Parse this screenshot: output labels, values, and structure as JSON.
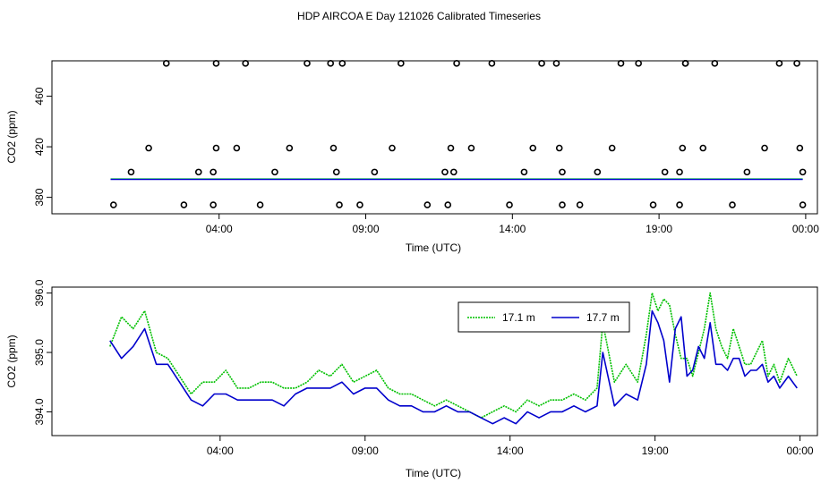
{
  "figure": {
    "title": "HDP AIRCOA E  Day 121026  Calibrated Timeseries"
  },
  "chart_data": [
    {
      "type": "scatter",
      "title": "",
      "xlabel": "Time (UTC)",
      "ylabel": "CO2 (ppm)",
      "x_unit": "hours UTC",
      "xlim": [
        -1.7,
        24.4
      ],
      "ylim": [
        367,
        488
      ],
      "x_ticks": [
        4,
        9,
        14,
        19,
        24
      ],
      "x_tick_labels": [
        "04:00",
        "09:00",
        "14:00",
        "19:00",
        "00:00"
      ],
      "y_ticks": [
        380,
        420,
        460
      ],
      "y_tick_labels": [
        "380",
        "420",
        "460"
      ],
      "grid": false,
      "points": {
        "x": [
          0.4,
          1.0,
          1.6,
          2.2,
          2.8,
          3.3,
          3.8,
          3.8,
          3.9,
          3.9,
          4.6,
          4.9,
          5.4,
          5.9,
          6.4,
          7.0,
          7.8,
          7.9,
          8.0,
          8.1,
          8.2,
          8.8,
          9.3,
          9.9,
          10.2,
          11.1,
          11.7,
          11.8,
          11.9,
          12.0,
          12.1,
          12.6,
          13.3,
          13.9,
          14.4,
          14.7,
          15.0,
          15.5,
          15.6,
          15.7,
          15.7,
          16.3,
          16.9,
          17.4,
          17.7,
          18.3,
          18.8,
          19.2,
          19.7,
          19.7,
          19.8,
          19.9,
          19.9,
          20.5,
          20.9,
          21.5,
          22.0,
          22.6,
          23.1,
          23.7,
          23.8,
          23.9,
          23.9
        ],
        "y": [
          374,
          400,
          419,
          486,
          374,
          400,
          400,
          374,
          419,
          486,
          419,
          486,
          374,
          400,
          419,
          486,
          486,
          419,
          400,
          374,
          486,
          374,
          400,
          419,
          486,
          374,
          400,
          374,
          419,
          400,
          486,
          419,
          486,
          374,
          400,
          419,
          486,
          486,
          419,
          400,
          374,
          374,
          400,
          419,
          486,
          486,
          374,
          400,
          374,
          400,
          419,
          486,
          486,
          419,
          486,
          374,
          400,
          419,
          486,
          486,
          419,
          400,
          374
        ]
      },
      "baseline": {
        "x_start": 0.3,
        "x_end": 23.9,
        "value": 394.6
      }
    },
    {
      "type": "line",
      "title": "",
      "xlabel": "Time (UTC)",
      "ylabel": "CO2 (ppm)",
      "x_unit": "hours UTC",
      "xlim": [
        -1.8,
        24.6
      ],
      "ylim": [
        393.6,
        396.1
      ],
      "x_ticks": [
        4,
        9,
        14,
        19,
        24
      ],
      "x_tick_labels": [
        "04:00",
        "09:00",
        "14:00",
        "19:00",
        "00:00"
      ],
      "y_ticks": [
        394.0,
        395.0,
        396.0
      ],
      "y_tick_labels": [
        "394.0",
        "395.0",
        "396.0"
      ],
      "grid": false,
      "legend_position": "top-right",
      "series": [
        {
          "name": "17.1 m",
          "color": "#00c000",
          "x": [
            0.2,
            0.6,
            1.0,
            1.4,
            1.8,
            2.2,
            2.6,
            3.0,
            3.4,
            3.8,
            4.2,
            4.6,
            5.0,
            5.4,
            5.8,
            6.2,
            6.6,
            7.0,
            7.4,
            7.8,
            8.2,
            8.6,
            9.0,
            9.4,
            9.8,
            10.2,
            10.6,
            11.0,
            11.4,
            11.8,
            12.2,
            12.6,
            13.0,
            13.4,
            13.8,
            14.2,
            14.6,
            15.0,
            15.4,
            15.8,
            16.2,
            16.6,
            17.0,
            17.2,
            17.6,
            18.0,
            18.4,
            18.7,
            18.9,
            19.1,
            19.3,
            19.5,
            19.7,
            19.9,
            20.1,
            20.3,
            20.5,
            20.7,
            20.9,
            21.1,
            21.3,
            21.5,
            21.7,
            21.9,
            22.1,
            22.3,
            22.5,
            22.7,
            22.9,
            23.1,
            23.3,
            23.6,
            23.9
          ],
          "y": [
            395.1,
            395.6,
            395.4,
            395.7,
            395.0,
            394.9,
            394.6,
            394.3,
            394.5,
            394.5,
            394.7,
            394.4,
            394.4,
            394.5,
            394.5,
            394.4,
            394.4,
            394.5,
            394.7,
            394.6,
            394.8,
            394.5,
            394.6,
            394.7,
            394.4,
            394.3,
            394.3,
            394.2,
            394.1,
            394.2,
            394.1,
            394.0,
            393.9,
            394.0,
            394.1,
            394.0,
            394.2,
            394.1,
            394.2,
            394.2,
            394.3,
            394.2,
            394.4,
            395.5,
            394.5,
            394.8,
            394.5,
            395.3,
            396.0,
            395.7,
            395.9,
            395.8,
            395.3,
            394.9,
            394.9,
            394.6,
            395.0,
            395.4,
            396.0,
            395.4,
            395.1,
            394.9,
            395.4,
            395.1,
            394.8,
            394.8,
            395.0,
            395.2,
            394.6,
            394.8,
            394.5,
            394.9,
            394.6
          ]
        },
        {
          "name": "17.7 m",
          "color": "#0000cc",
          "x": [
            0.2,
            0.6,
            1.0,
            1.4,
            1.8,
            2.2,
            2.6,
            3.0,
            3.4,
            3.8,
            4.2,
            4.6,
            5.0,
            5.4,
            5.8,
            6.2,
            6.6,
            7.0,
            7.4,
            7.8,
            8.2,
            8.6,
            9.0,
            9.4,
            9.8,
            10.2,
            10.6,
            11.0,
            11.4,
            11.8,
            12.2,
            12.6,
            13.0,
            13.4,
            13.8,
            14.2,
            14.6,
            15.0,
            15.4,
            15.8,
            16.2,
            16.6,
            17.0,
            17.2,
            17.6,
            18.0,
            18.4,
            18.7,
            18.9,
            19.1,
            19.3,
            19.5,
            19.7,
            19.9,
            20.1,
            20.3,
            20.5,
            20.7,
            20.9,
            21.1,
            21.3,
            21.5,
            21.7,
            21.9,
            22.1,
            22.3,
            22.5,
            22.7,
            22.9,
            23.1,
            23.3,
            23.6,
            23.9
          ],
          "y": [
            395.2,
            394.9,
            395.1,
            395.4,
            394.8,
            394.8,
            394.5,
            394.2,
            394.1,
            394.3,
            394.3,
            394.2,
            394.2,
            394.2,
            394.2,
            394.1,
            394.3,
            394.4,
            394.4,
            394.4,
            394.5,
            394.3,
            394.4,
            394.4,
            394.2,
            394.1,
            394.1,
            394.0,
            394.0,
            394.1,
            394.0,
            394.0,
            393.9,
            393.8,
            393.9,
            393.8,
            394.0,
            393.9,
            394.0,
            394.0,
            394.1,
            394.0,
            394.1,
            395.0,
            394.1,
            394.3,
            394.2,
            394.8,
            395.7,
            395.5,
            395.2,
            394.5,
            395.4,
            395.6,
            394.6,
            394.7,
            395.1,
            394.9,
            395.5,
            394.8,
            394.8,
            394.7,
            394.9,
            394.9,
            394.6,
            394.7,
            394.7,
            394.8,
            394.5,
            394.6,
            394.4,
            394.6,
            394.4
          ]
        }
      ]
    }
  ]
}
